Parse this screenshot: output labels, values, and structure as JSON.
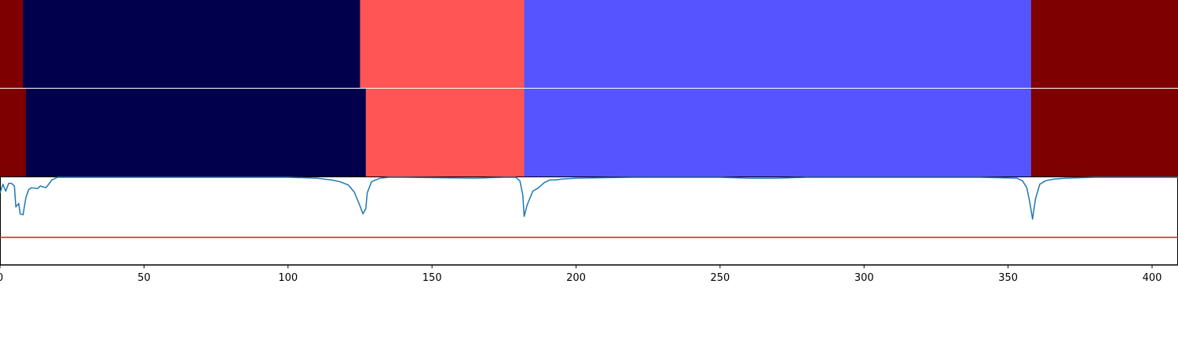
{
  "chart_data": {
    "type": "segmentation-timeline",
    "x_range": [
      0,
      409
    ],
    "x_ticks": [
      0,
      50,
      100,
      150,
      200,
      250,
      300,
      350,
      400
    ],
    "x_tick_labels": [
      "0",
      "50",
      "100",
      "150",
      "200",
      "250",
      "300",
      "350",
      "400"
    ],
    "segment_rows": [
      {
        "segments": [
          {
            "start": 0,
            "end": 8,
            "color": "#7f0000"
          },
          {
            "start": 8,
            "end": 125,
            "color": "#00004c"
          },
          {
            "start": 125,
            "end": 182,
            "color": "#ff5555"
          },
          {
            "start": 182,
            "end": 358,
            "color": "#5555ff"
          },
          {
            "start": 358,
            "end": 409,
            "color": "#7f0000"
          }
        ]
      },
      {
        "segments": [
          {
            "start": 0,
            "end": 9,
            "color": "#7f0000"
          },
          {
            "start": 9,
            "end": 127,
            "color": "#00004c"
          },
          {
            "start": 127,
            "end": 182,
            "color": "#ff5555"
          },
          {
            "start": 182,
            "end": 358,
            "color": "#5555ff"
          },
          {
            "start": 358,
            "end": 409,
            "color": "#7f0000"
          }
        ]
      }
    ],
    "line_panel": {
      "y_range": [
        0,
        1
      ],
      "series": {
        "color": "#1f77b4",
        "points": [
          [
            0,
            0.82
          ],
          [
            1,
            0.92
          ],
          [
            2,
            0.84
          ],
          [
            3,
            0.93
          ],
          [
            4,
            0.93
          ],
          [
            5,
            0.9
          ],
          [
            5.5,
            0.66
          ],
          [
            6.5,
            0.7
          ],
          [
            7,
            0.58
          ],
          [
            8,
            0.57
          ],
          [
            9,
            0.77
          ],
          [
            10,
            0.86
          ],
          [
            11,
            0.88
          ],
          [
            13,
            0.87
          ],
          [
            14,
            0.9
          ],
          [
            16,
            0.88
          ],
          [
            18,
            0.97
          ],
          [
            20,
            1.0
          ],
          [
            40,
            1.0
          ],
          [
            100,
            1.0
          ],
          [
            110,
            0.99
          ],
          [
            115,
            0.97
          ],
          [
            118,
            0.95
          ],
          [
            121,
            0.91
          ],
          [
            123,
            0.83
          ],
          [
            125,
            0.67
          ],
          [
            126,
            0.58
          ],
          [
            127,
            0.64
          ],
          [
            127.5,
            0.82
          ],
          [
            129,
            0.95
          ],
          [
            132,
            0.99
          ],
          [
            135,
            1.0
          ],
          [
            140,
            1.0
          ],
          [
            165,
            0.99
          ],
          [
            175,
            1.0
          ],
          [
            179,
            1.0
          ],
          [
            180.5,
            0.96
          ],
          [
            181.5,
            0.8
          ],
          [
            182,
            0.55
          ],
          [
            183,
            0.68
          ],
          [
            185,
            0.84
          ],
          [
            187,
            0.88
          ],
          [
            189,
            0.94
          ],
          [
            191,
            0.97
          ],
          [
            193,
            0.97
          ],
          [
            195,
            0.98
          ],
          [
            200,
            0.99
          ],
          [
            220,
            1.0
          ],
          [
            250,
            1.0
          ],
          [
            260,
            0.99
          ],
          [
            270,
            0.99
          ],
          [
            280,
            1.0
          ],
          [
            300,
            1.0
          ],
          [
            340,
            1.0
          ],
          [
            353,
            0.99
          ],
          [
            355,
            0.96
          ],
          [
            356.5,
            0.88
          ],
          [
            357.5,
            0.72
          ],
          [
            358.5,
            0.52
          ],
          [
            359.5,
            0.75
          ],
          [
            361,
            0.92
          ],
          [
            363,
            0.96
          ],
          [
            366,
            0.98
          ],
          [
            370,
            0.99
          ],
          [
            380,
            1.0
          ],
          [
            409,
            1.0
          ]
        ]
      },
      "threshold": {
        "y": 0.31,
        "color": "#d62728"
      }
    }
  }
}
